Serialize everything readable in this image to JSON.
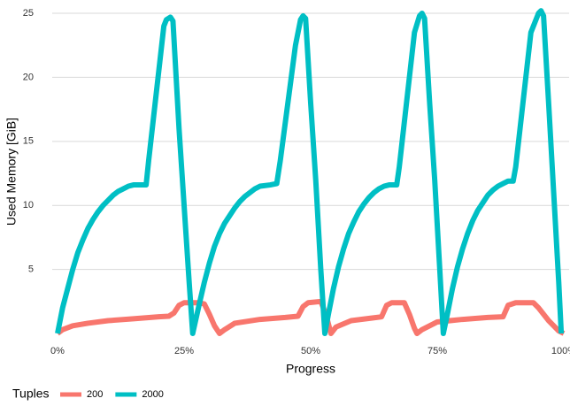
{
  "chart_data": {
    "type": "line",
    "xlabel": "Progress",
    "ylabel": "Used Memory [GiB]",
    "legend_title": "Tuples",
    "xlim": [
      0,
      100
    ],
    "ylim": [
      0,
      25.3
    ],
    "xticks": [
      {
        "value": 0,
        "label": "0%"
      },
      {
        "value": 25,
        "label": "25%"
      },
      {
        "value": 50,
        "label": "50%"
      },
      {
        "value": 75,
        "label": "75%"
      },
      {
        "value": 100,
        "label": "100%"
      }
    ],
    "yticks": [
      5,
      10,
      15,
      20,
      25
    ],
    "grid": true,
    "legend": "bottom",
    "series": [
      {
        "name": "200",
        "color": "#F8766D",
        "x": [
          0,
          1,
          3,
          6,
          10,
          15,
          20,
          22,
          23,
          24,
          25,
          28,
          29,
          30,
          31,
          32,
          33,
          35,
          40,
          45,
          47.5,
          48.5,
          49.5,
          52,
          53,
          54,
          55,
          58,
          62,
          64,
          65,
          66,
          68.5,
          69.5,
          70.5,
          71,
          72,
          75,
          80,
          85,
          88,
          89,
          90.5,
          94,
          95,
          97,
          99,
          100
        ],
        "values": [
          0,
          0.3,
          0.6,
          0.8,
          1.0,
          1.15,
          1.3,
          1.35,
          1.6,
          2.2,
          2.4,
          2.4,
          2.3,
          1.5,
          0.6,
          0,
          0.3,
          0.8,
          1.1,
          1.25,
          1.35,
          2.1,
          2.4,
          2.5,
          1.5,
          0,
          0.5,
          1.0,
          1.2,
          1.3,
          2.2,
          2.4,
          2.4,
          1.5,
          0.4,
          0,
          0.3,
          0.9,
          1.1,
          1.25,
          1.3,
          2.2,
          2.4,
          2.4,
          2.0,
          1.0,
          0.2,
          0
        ]
      },
      {
        "name": "2000",
        "color": "#00BFC4",
        "x": [
          0,
          1,
          2,
          3,
          4,
          5,
          6,
          7,
          8,
          9,
          10,
          11,
          12,
          13,
          14,
          15,
          17.5,
          18,
          19,
          20,
          21,
          21.5,
          22.3,
          22.8,
          24,
          25,
          26,
          26.7,
          28,
          29,
          30,
          31,
          32,
          33,
          34,
          35,
          36,
          37,
          38,
          39,
          40,
          42,
          43.3,
          44,
          45,
          46,
          47,
          48,
          48.5,
          49,
          50,
          51,
          52,
          52.8,
          53.5,
          54.5,
          55.5,
          56.5,
          57.5,
          58.5,
          59.5,
          60.5,
          61.5,
          62.5,
          63.5,
          64.5,
          65.5,
          67,
          67.5,
          68.5,
          69.5,
          70.5,
          71.5,
          72,
          72.5,
          73.5,
          74.5,
          75.5,
          76.2,
          77,
          78,
          79,
          80,
          81,
          82,
          83,
          84,
          85,
          86,
          87,
          88,
          89,
          90,
          90.5,
          91.5,
          92.5,
          93.5,
          95,
          95.5,
          96,
          97,
          98,
          99,
          99.5
        ],
        "values": [
          0,
          2,
          3.5,
          5,
          6.3,
          7.3,
          8.2,
          8.9,
          9.5,
          10,
          10.4,
          10.8,
          11.1,
          11.3,
          11.5,
          11.6,
          11.6,
          13.5,
          17,
          20.5,
          24,
          24.5,
          24.7,
          24.4,
          16,
          10,
          4,
          0,
          2.3,
          4,
          5.5,
          6.8,
          7.8,
          8.6,
          9.2,
          9.8,
          10.3,
          10.7,
          11,
          11.3,
          11.5,
          11.6,
          11.7,
          13.5,
          16.5,
          19.5,
          22.5,
          24.5,
          24.8,
          24.6,
          18,
          12,
          5,
          0,
          1.5,
          3.5,
          5.2,
          6.6,
          7.8,
          8.7,
          9.5,
          10.1,
          10.6,
          11,
          11.3,
          11.5,
          11.6,
          11.6,
          13,
          16.5,
          20,
          23.5,
          24.8,
          25,
          24.6,
          18,
          12,
          5,
          0,
          1.5,
          3.5,
          5.2,
          6.6,
          7.8,
          8.8,
          9.6,
          10.2,
          10.8,
          11.2,
          11.5,
          11.7,
          11.9,
          11.9,
          13,
          16.5,
          20,
          23.5,
          25,
          25.2,
          24.8,
          18,
          11,
          4,
          0
        ]
      }
    ]
  }
}
